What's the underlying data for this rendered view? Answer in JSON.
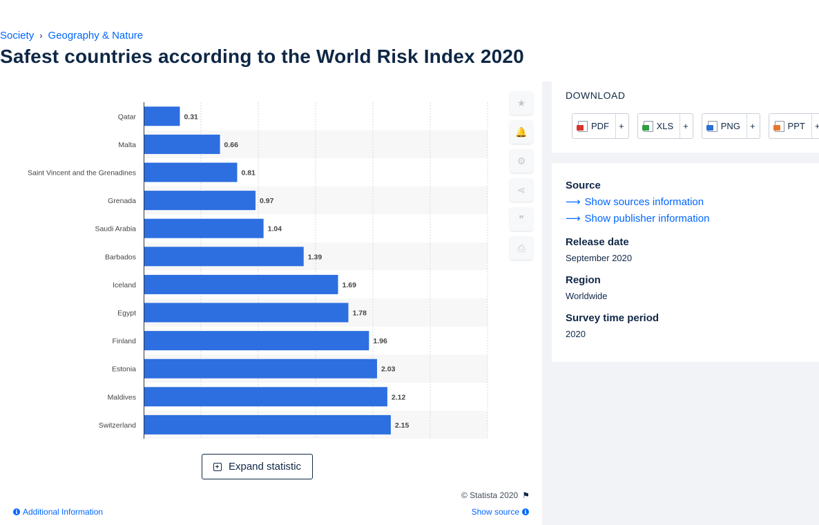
{
  "breadcrumb": {
    "items": [
      "Society",
      "Geography & Nature"
    ],
    "separator": "›"
  },
  "page_title": "Safest countries according to the World Risk Index 2020",
  "chart_data": {
    "type": "bar",
    "orientation": "horizontal",
    "categories": [
      "Qatar",
      "Malta",
      "Saint Vincent and the Grenadines",
      "Grenada",
      "Saudi Arabia",
      "Barbados",
      "Iceland",
      "Egypt",
      "Finland",
      "Estonia",
      "Maldives",
      "Switzerland"
    ],
    "values": [
      0.31,
      0.66,
      0.81,
      0.97,
      1.04,
      1.39,
      1.69,
      1.78,
      1.96,
      2.03,
      2.12,
      2.15
    ],
    "value_labels": [
      "0.31",
      "0.66",
      "0.81",
      "0.97",
      "1.04",
      "1.39",
      "1.69",
      "1.78",
      "1.96",
      "2.03",
      "2.12",
      "2.15"
    ],
    "xlim": [
      0,
      3
    ],
    "grid": true,
    "bar_color": "#2d6fe0",
    "stripe_color": "#f7f7f7"
  },
  "tools": {
    "icons": [
      "star-icon",
      "bell-icon",
      "gear-icon",
      "share-icon",
      "quote-icon",
      "print-icon"
    ],
    "glyphs": [
      "★",
      "🔔",
      "⚙",
      "⋖",
      "❞",
      "⎙"
    ]
  },
  "expand_label": "Expand statistic",
  "copyright": "© Statista 2020",
  "additional_info": "Additional Information",
  "show_source": "Show source",
  "download": {
    "title": "DOWNLOAD",
    "buttons": [
      {
        "label": "PDF",
        "color": "#d9342b"
      },
      {
        "label": "XLS",
        "color": "#2f9e45"
      },
      {
        "label": "PNG",
        "color": "#2b6fd6"
      },
      {
        "label": "PPT",
        "color": "#e8772e"
      }
    ],
    "plus": "+"
  },
  "meta": {
    "source_label": "Source",
    "sources_link": "Show sources information",
    "publisher_link": "Show publisher information",
    "release_label": "Release date",
    "release_value": "September 2020",
    "region_label": "Region",
    "region_value": "Worldwide",
    "survey_label": "Survey time period",
    "survey_value": "2020"
  }
}
